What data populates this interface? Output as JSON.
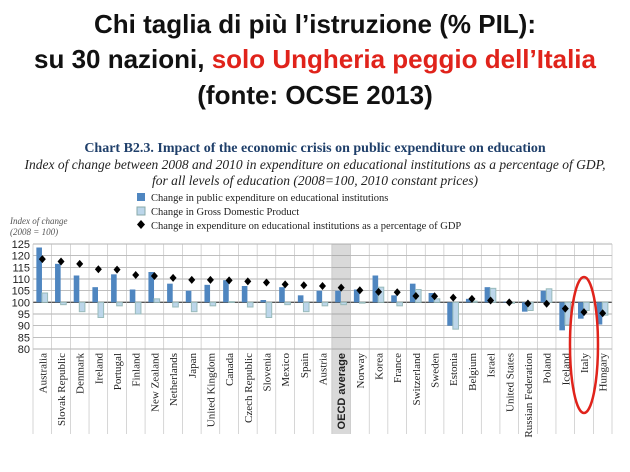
{
  "heading": {
    "line1": "Chi taglia di più l’istruzione (% PIL):",
    "line2_prefix": "su 30 nazioni, ",
    "line2_highlight": "solo Ungheria peggio dell’Italia",
    "line3": "(fonte: OCSE 2013)"
  },
  "colors": {
    "edu": "#4f86c0",
    "gdp": "#bcd6ea",
    "marker": "#000000",
    "highlight": "#e0231b",
    "oecd_band": "#d9d9d9"
  },
  "chart_data": {
    "type": "bar",
    "title": "Chart B2.3.   Impact of the economic crisis on public expenditure on education",
    "subtitle1": "Index of change between 2008 and 2010 in expenditure on educational institutions as a percentage of GDP,",
    "subtitle2": "for all levels of education (2008=100, 2010 constant prices)",
    "ylabel1": "Index of change",
    "ylabel2": "(2008 = 100)",
    "ylim": [
      80,
      125
    ],
    "yticks": [
      80,
      85,
      90,
      95,
      100,
      105,
      110,
      115,
      120,
      125
    ],
    "baseline": 100,
    "grid": true,
    "legend_position": "top",
    "categories": [
      "Australia",
      "Slovak Republic",
      "Denmark",
      "Ireland",
      "Portugal",
      "Finland",
      "New Zealand",
      "Netherlands",
      "Japan",
      "United Kingdom",
      "Canada",
      "Czech Republic",
      "Slovenia",
      "Mexico",
      "Spain",
      "Austria",
      "OECD average",
      "Norway",
      "Korea",
      "France",
      "Switzerland",
      "Sweden",
      "Estonia",
      "Belgium",
      "Israel",
      "United States",
      "Russian Federation",
      "Poland",
      "Iceland",
      "Italy",
      "Hungary"
    ],
    "highlighted_category": "Italy",
    "shaded_category": "OECD average",
    "series": [
      {
        "name": "Change in public expenditure on educational institutions",
        "kind": "bar",
        "values": [
          123.5,
          116.5,
          111.5,
          106.5,
          112,
          105.5,
          113,
          108,
          105,
          107.5,
          109.5,
          107,
          101,
          106.5,
          103,
          105,
          105,
          105.5,
          111.5,
          103,
          108,
          104,
          90,
          101.5,
          106.5,
          100.3,
          96,
          105,
          88,
          93,
          90.5
        ]
      },
      {
        "name": "Change in Gross Domestic Product",
        "kind": "bar",
        "values": [
          104,
          99,
          96,
          93.5,
          98.5,
          95,
          101.5,
          98,
          96,
          98.5,
          100.3,
          98,
          93.5,
          99,
          96,
          98.5,
          99,
          100,
          106.5,
          98.5,
          105.5,
          101.5,
          88.5,
          100.5,
          106,
          99.6,
          96.5,
          105.8,
          90.3,
          96.5,
          94.5
        ]
      },
      {
        "name": "Change in expenditure on educational institutions as a percentage of GDP",
        "kind": "marker",
        "values": [
          118.5,
          117.5,
          116.5,
          114.2,
          114,
          111.7,
          111.3,
          110.5,
          109.6,
          109.6,
          109.4,
          109,
          108.5,
          107.7,
          107.3,
          107,
          106.3,
          105.2,
          104.5,
          104.3,
          102.7,
          102.6,
          102,
          101.5,
          100.8,
          100,
          99.5,
          99.4,
          97.3,
          95.8,
          95.3
        ]
      }
    ]
  }
}
